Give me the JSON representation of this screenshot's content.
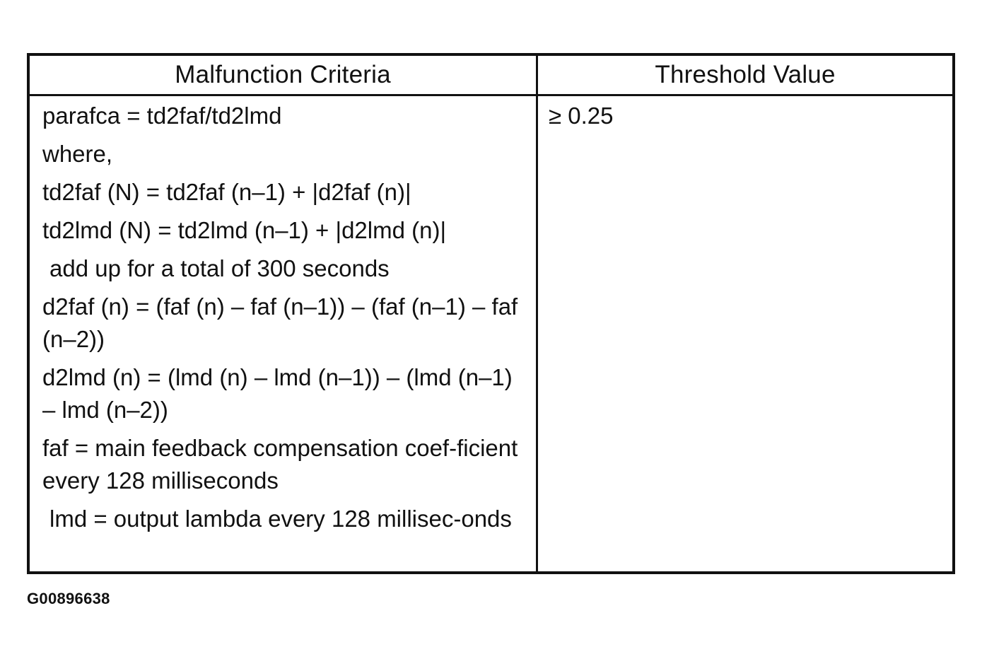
{
  "table": {
    "headers": {
      "criteria": "Malfunction Criteria",
      "threshold": "Threshold Value"
    },
    "criteria_lines": [
      "parafca = td2faf/td2lmd",
      "where,",
      "td2faf (N) = td2faf (n–1) + |d2faf (n)|",
      "td2lmd (N) = td2lmd (n–1) + |d2lmd (n)|",
      "add up for a total of 300 seconds",
      "d2faf (n) = (faf (n) – faf (n–1)) – (faf (n–1) – faf (n–2))",
      "d2lmd (n) = (lmd (n) – lmd (n–1)) – (lmd (n–1) – lmd (n–2))",
      "faf = main feedback compensation coef-ficient every 128 milliseconds",
      "lmd = output lambda every 128 millisec-onds"
    ],
    "threshold_value": "≥ 0.25"
  },
  "figure_id": "G00896638"
}
